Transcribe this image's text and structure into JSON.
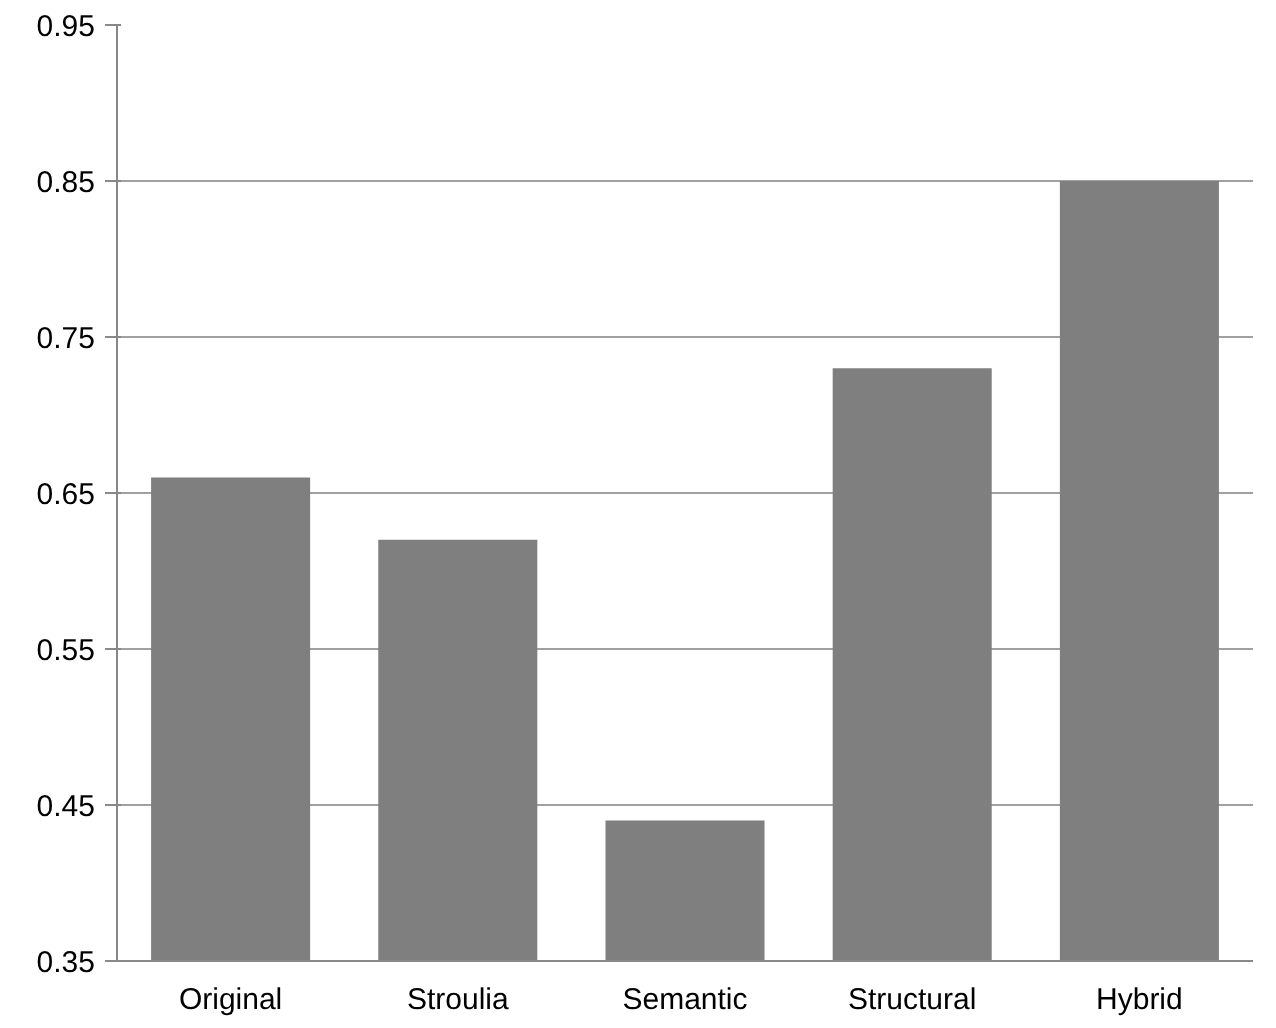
{
  "chart_data": {
    "type": "bar",
    "categories": [
      "Original",
      "Stroulia",
      "Semantic",
      "Structural",
      "Hybrid"
    ],
    "values": [
      0.66,
      0.62,
      0.44,
      0.73,
      0.85
    ],
    "color": "#7f7f7f",
    "ylim": [
      0.35,
      0.95
    ],
    "yticks": [
      {
        "value": 0.35,
        "label": "0.35"
      },
      {
        "value": 0.45,
        "label": "0.45"
      },
      {
        "value": 0.55,
        "label": "0.55"
      },
      {
        "value": 0.65,
        "label": "0.65"
      },
      {
        "value": 0.75,
        "label": "0.75"
      },
      {
        "value": 0.85,
        "label": "0.85"
      },
      {
        "value": 0.95,
        "label": "0.95"
      }
    ],
    "grid": "y"
  }
}
